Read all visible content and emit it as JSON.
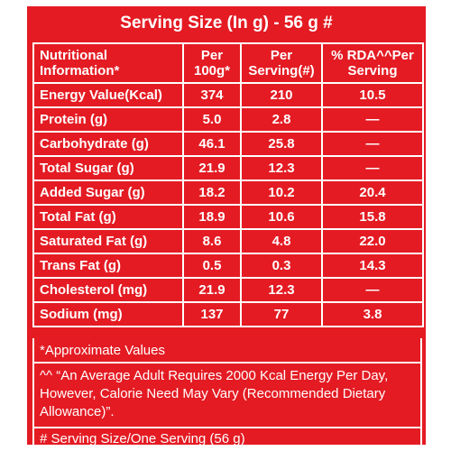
{
  "title": "Serving Size (In g) - 56 g #",
  "headers": {
    "col1": "Nutritional Information*",
    "col2": "Per 100g*",
    "col3": "Per Serving(#)",
    "col4": "% RDA^^Per Serving"
  },
  "rows": [
    {
      "label": "Energy Value(Kcal)",
      "per100": "374",
      "perServing": "210",
      "rda": "10.5"
    },
    {
      "label": "Protein (g)",
      "per100": "5.0",
      "perServing": "2.8",
      "rda": "—"
    },
    {
      "label": "Carbohydrate (g)",
      "per100": "46.1",
      "perServing": "25.8",
      "rda": "—"
    },
    {
      "label": "Total Sugar (g)",
      "per100": "21.9",
      "perServing": "12.3",
      "rda": "—"
    },
    {
      "label": "Added Sugar (g)",
      "per100": "18.2",
      "perServing": "10.2",
      "rda": "20.4"
    },
    {
      "label": "Total Fat (g)",
      "per100": "18.9",
      "perServing": "10.6",
      "rda": "15.8"
    },
    {
      "label": "Saturated Fat (g)",
      "per100": "8.6",
      "perServing": "4.8",
      "rda": "22.0"
    },
    {
      "label": "Trans Fat (g)",
      "per100": "0.5",
      "perServing": "0.3",
      "rda": "14.3"
    },
    {
      "label": "Cholesterol (mg)",
      "per100": "21.9",
      "perServing": "12.3",
      "rda": "—"
    },
    {
      "label": "Sodium (mg)",
      "per100": "137",
      "perServing": "77",
      "rda": "3.8"
    }
  ],
  "footnotes": {
    "approx": "*Approximate Values",
    "rda_note": "^^ “An Average Adult Requires 2000 Kcal Energy Per Day, However, Calorie Need May Vary (Recommended Dietary Allowance)”.",
    "serving_note": "# Serving Size/One Serving (56 g)"
  },
  "colors": {
    "background": "#e41b23",
    "text": "#ffffff"
  }
}
